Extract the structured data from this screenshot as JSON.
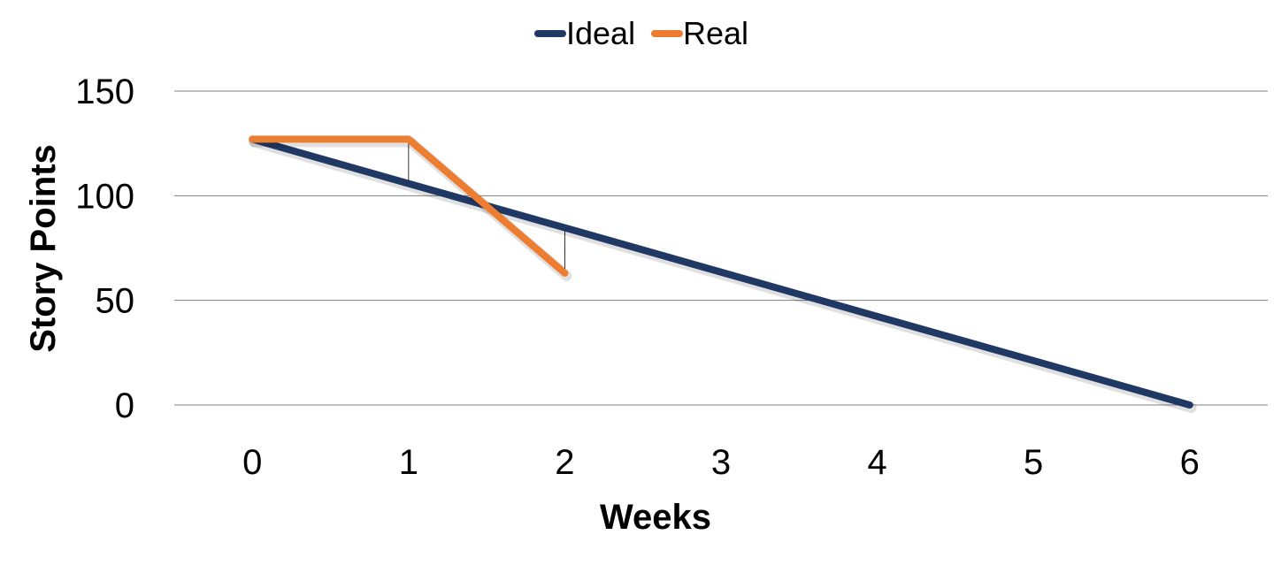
{
  "chart_data": {
    "type": "line",
    "title": "",
    "xlabel": "Weeks",
    "ylabel": "Story Points",
    "x": [
      0,
      1,
      2,
      3,
      4,
      5,
      6
    ],
    "xlim": [
      -0.5,
      6.5
    ],
    "ylim": [
      0,
      150
    ],
    "yticks": [
      0,
      50,
      100,
      150
    ],
    "grid": true,
    "legend_position": "top-center",
    "series": [
      {
        "name": "Ideal",
        "color": "#1f3864",
        "x": [
          0,
          1,
          2,
          3,
          4,
          5,
          6
        ],
        "values": [
          127,
          105.8,
          84.7,
          63.5,
          42.3,
          21.2,
          0
        ]
      },
      {
        "name": "Real",
        "color": "#ed7d31",
        "x": [
          0,
          1,
          2
        ],
        "values": [
          127,
          127,
          63
        ]
      }
    ]
  }
}
